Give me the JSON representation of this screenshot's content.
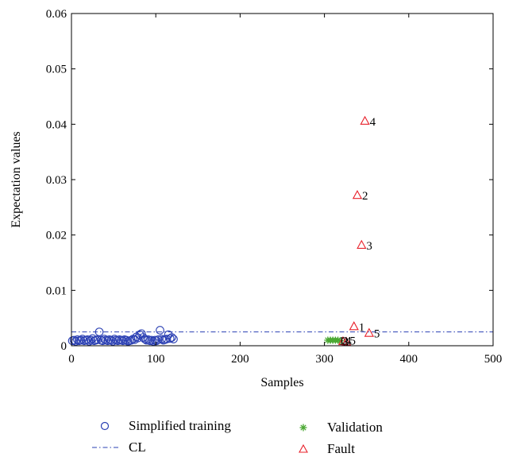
{
  "chart_data": {
    "type": "scatter",
    "xlabel": "Samples",
    "ylabel": "Expectation values",
    "xlim": [
      0,
      500
    ],
    "ylim": [
      0,
      0.06
    ],
    "x_ticks": [
      "0",
      "100",
      "200",
      "300",
      "400",
      "500"
    ],
    "x_tick_values": [
      0,
      100,
      200,
      300,
      400,
      500
    ],
    "y_ticks": [
      "0",
      "0.01",
      "0.02",
      "0.03",
      "0.04",
      "0.05",
      "0.06"
    ],
    "y_tick_values": [
      0,
      0.01,
      0.02,
      0.03,
      0.04,
      0.05,
      0.06
    ],
    "grid": false,
    "legend_position": "bottom",
    "control_limit": 0.0025,
    "series": [
      {
        "name": "Simplified training",
        "marker": "circle",
        "color": "#2a3fb3",
        "points": [
          [
            1,
            0.0009
          ],
          [
            3,
            0.001
          ],
          [
            5,
            0.0008
          ],
          [
            7,
            0.0011
          ],
          [
            9,
            0.0009
          ],
          [
            11,
            0.001
          ],
          [
            13,
            0.0012
          ],
          [
            15,
            0.0009
          ],
          [
            17,
            0.001
          ],
          [
            19,
            0.0011
          ],
          [
            21,
            0.0008
          ],
          [
            23,
            0.001
          ],
          [
            25,
            0.0013
          ],
          [
            27,
            0.0009
          ],
          [
            29,
            0.001
          ],
          [
            31,
            0.0011
          ],
          [
            33,
            0.0025
          ],
          [
            35,
            0.001
          ],
          [
            37,
            0.0009
          ],
          [
            39,
            0.0012
          ],
          [
            41,
            0.001
          ],
          [
            43,
            0.0009
          ],
          [
            45,
            0.0011
          ],
          [
            47,
            0.001
          ],
          [
            49,
            0.0008
          ],
          [
            51,
            0.0012
          ],
          [
            53,
            0.001
          ],
          [
            55,
            0.0009
          ],
          [
            57,
            0.0011
          ],
          [
            59,
            0.001
          ],
          [
            61,
            0.0009
          ],
          [
            63,
            0.0011
          ],
          [
            65,
            0.001
          ],
          [
            67,
            0.0008
          ],
          [
            69,
            0.0009
          ],
          [
            71,
            0.001
          ],
          [
            73,
            0.0012
          ],
          [
            75,
            0.0011
          ],
          [
            77,
            0.0016
          ],
          [
            79,
            0.0014
          ],
          [
            81,
            0.002
          ],
          [
            83,
            0.0022
          ],
          [
            85,
            0.0015
          ],
          [
            87,
            0.0012
          ],
          [
            89,
            0.001
          ],
          [
            91,
            0.0011
          ],
          [
            93,
            0.0009
          ],
          [
            95,
            0.001
          ],
          [
            97,
            0.0008
          ],
          [
            99,
            0.001
          ],
          [
            101,
            0.0009
          ],
          [
            103,
            0.0011
          ],
          [
            105,
            0.0028
          ],
          [
            107,
            0.0012
          ],
          [
            109,
            0.001
          ],
          [
            111,
            0.0011
          ],
          [
            113,
            0.0012
          ],
          [
            115,
            0.002
          ],
          [
            117,
            0.0013
          ],
          [
            119,
            0.0015
          ],
          [
            121,
            0.0012
          ]
        ]
      },
      {
        "name": "Validation",
        "marker": "star",
        "color": "#4aa832",
        "points": [
          [
            304,
            0.001
          ],
          [
            307,
            0.001
          ],
          [
            310,
            0.001
          ],
          [
            313,
            0.001
          ],
          [
            316,
            0.001
          ],
          [
            319,
            0.0009
          ]
        ]
      },
      {
        "name": "Fault",
        "marker": "triangle",
        "color": "#e8202a",
        "points": [
          [
            335,
            0.0034
          ],
          [
            348,
            0.0405
          ],
          [
            339,
            0.0271
          ],
          [
            344,
            0.0181
          ],
          [
            353,
            0.0022
          ],
          [
            322,
            0.0007
          ],
          [
            326,
            0.0006
          ]
        ]
      }
    ],
    "cl_name": "CL",
    "fault_labels": [
      {
        "text": "1",
        "x": 335,
        "y": 0.0034
      },
      {
        "text": "4",
        "x": 348,
        "y": 0.0405
      },
      {
        "text": "2",
        "x": 339,
        "y": 0.0271
      },
      {
        "text": "3",
        "x": 344,
        "y": 0.0181
      },
      {
        "text": "5",
        "x": 353,
        "y": 0.0022
      }
    ],
    "cluster_labels": [
      {
        "text": "1",
        "x": 317,
        "y": 0.0009
      },
      {
        "text": "2",
        "x": 321,
        "y": 0.0009
      },
      {
        "text": "4",
        "x": 325,
        "y": 0.0009
      },
      {
        "text": "3",
        "x": 322,
        "y": 0.0007
      },
      {
        "text": "5",
        "x": 330,
        "y": 0.0009
      }
    ]
  },
  "legend": {
    "training": "Simplified training",
    "cl": "CL",
    "validation": "Validation",
    "fault": "Fault"
  }
}
